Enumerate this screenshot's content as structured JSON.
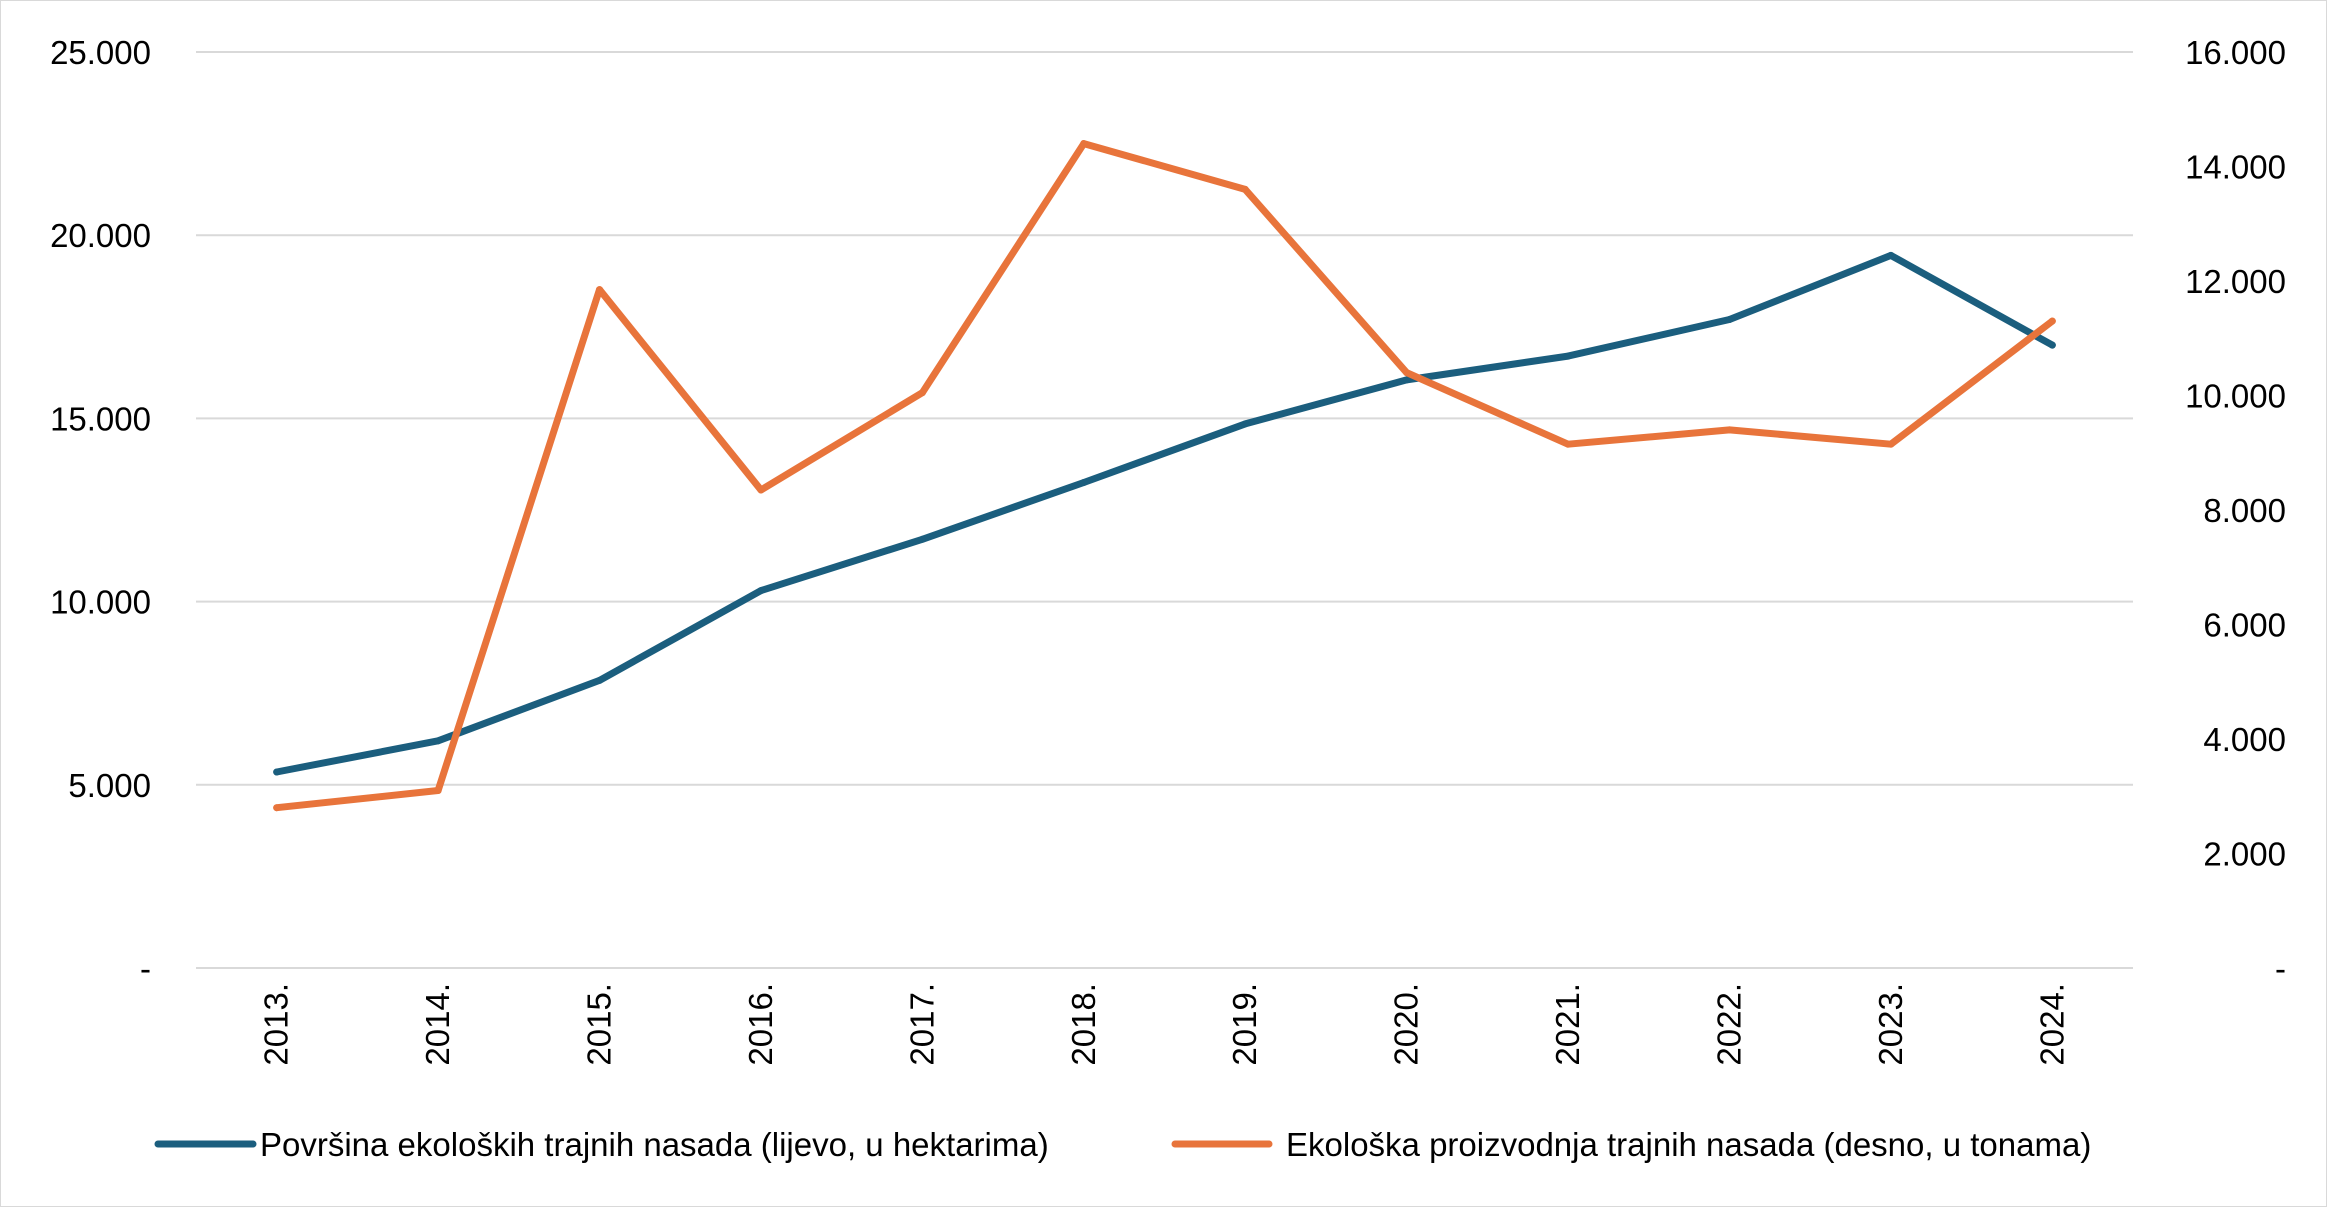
{
  "chart_data": {
    "type": "line",
    "title": "",
    "xlabel": "",
    "ylabel": "",
    "categories": [
      "2013.",
      "2014.",
      "2015.",
      "2016.",
      "2017.",
      "2018.",
      "2019.",
      "2020.",
      "2021.",
      "2022.",
      "2023.",
      "2024."
    ],
    "y_left": {
      "ylim": [
        0,
        25000
      ],
      "ticks": [
        0,
        5000,
        10000,
        15000,
        20000,
        25000
      ],
      "tick_labels": [
        "-",
        "5.000",
        "10.000",
        "15.000",
        "20.000",
        "25.000"
      ]
    },
    "y_right": {
      "ylim": [
        0,
        16000
      ],
      "ticks": [
        0,
        2000,
        4000,
        6000,
        8000,
        10000,
        12000,
        14000,
        16000
      ],
      "tick_labels": [
        "-",
        "2.000",
        "4.000",
        "6.000",
        "8.000",
        "10.000",
        "12.000",
        "14.000",
        "16.000"
      ]
    },
    "grid": true,
    "legend_position": "bottom",
    "series": [
      {
        "name": "Površina ekoloških trajnih nasada (lijevo, u hektarima)",
        "axis": "left",
        "color": "#1b5e7e",
        "values": [
          5350,
          6200,
          7850,
          10300,
          11700,
          13250,
          14850,
          16050,
          16700,
          17700,
          19450,
          17000
        ]
      },
      {
        "name": "Ekološka proizvodnja trajnih nasada (desno, u tonama)",
        "axis": "right",
        "color": "#e8743b",
        "values": [
          2800,
          3100,
          11850,
          8350,
          10050,
          14400,
          13600,
          10400,
          9150,
          9400,
          9150,
          11300
        ]
      }
    ]
  }
}
